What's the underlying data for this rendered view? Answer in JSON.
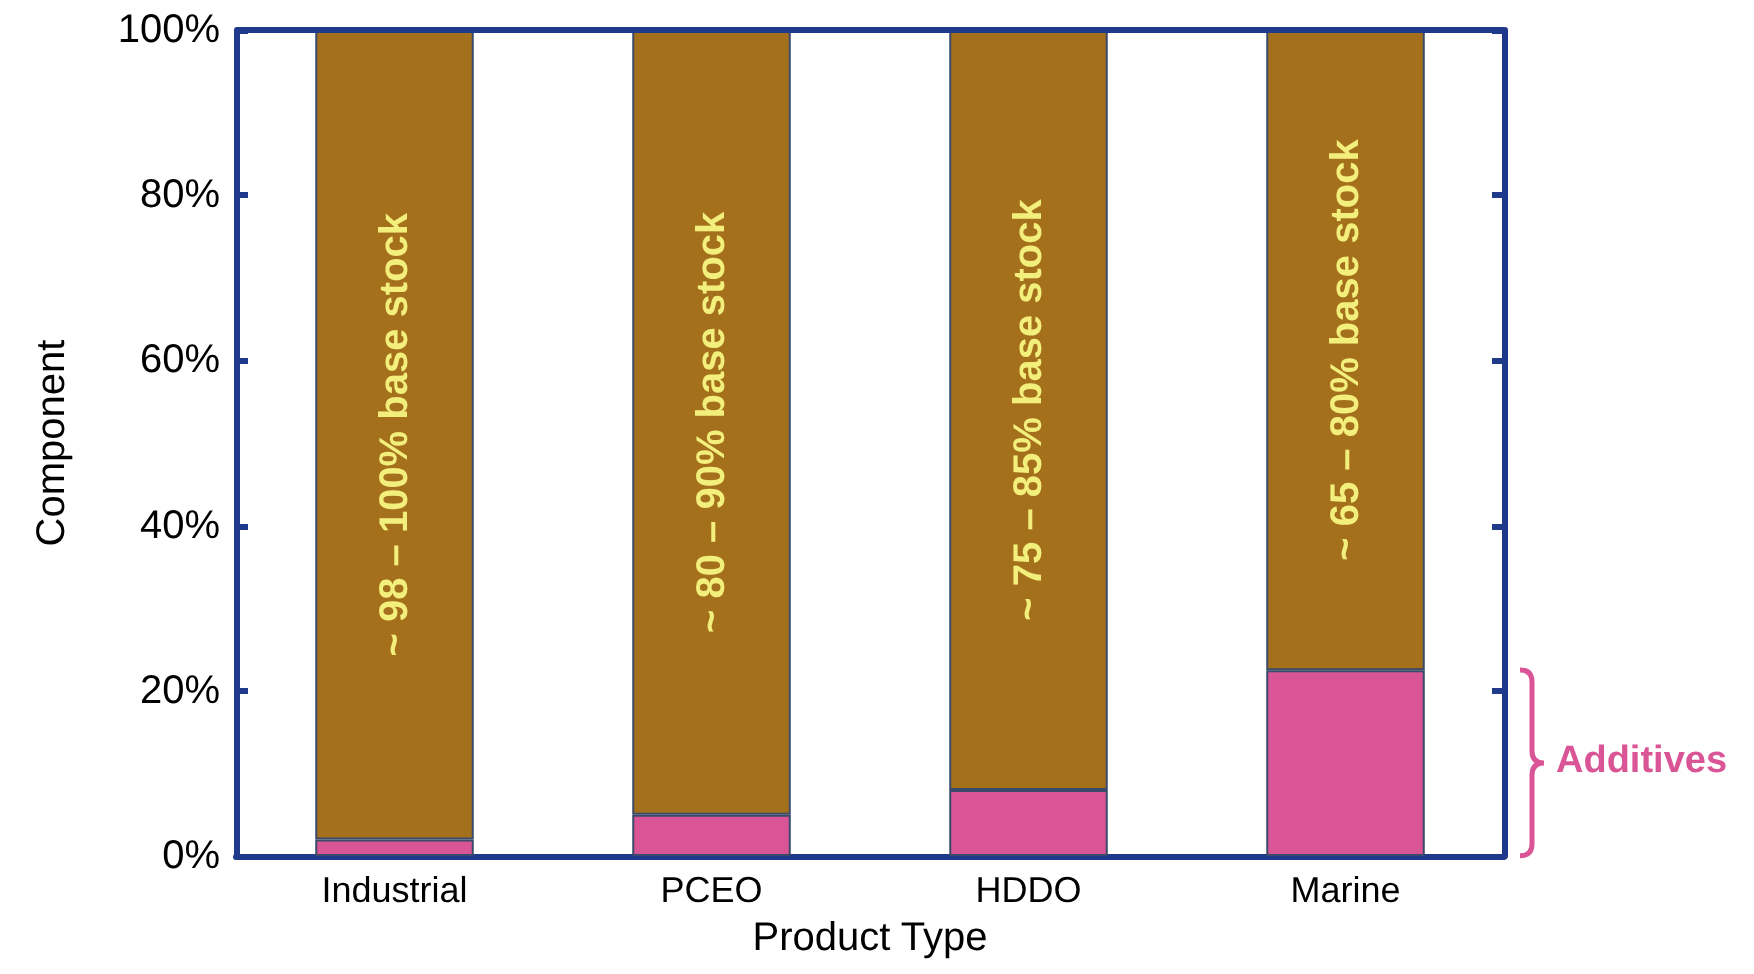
{
  "chart_data": {
    "type": "bar",
    "stacked": true,
    "xlabel": "Product Type",
    "ylabel": "Component",
    "categories": [
      "Industrial",
      "PCEO",
      "HDDO",
      "Marine"
    ],
    "series": [
      {
        "color": "#d95596",
        "values": [
          2,
          5,
          8,
          22.5
        ]
      },
      {
        "color": "#a5701c",
        "values": [
          98,
          95,
          92,
          77.5
        ]
      }
    ],
    "ylim": [
      0,
      100
    ],
    "yticks": [
      {
        "value": 0,
        "label": "0%"
      },
      {
        "value": 20,
        "label": "20%"
      },
      {
        "value": 40,
        "label": "40%"
      },
      {
        "value": 60,
        "label": "60%"
      },
      {
        "value": 80,
        "label": "80%"
      },
      {
        "value": 100,
        "label": "100%"
      }
    ],
    "annotations": [
      "~ 98 – 100% base stock",
      "~ 80 – 90% base stock",
      "~ 75 – 85% base stock",
      "~ 65 – 80% base stock",
      "Additives"
    ],
    "grid": false
  }
}
